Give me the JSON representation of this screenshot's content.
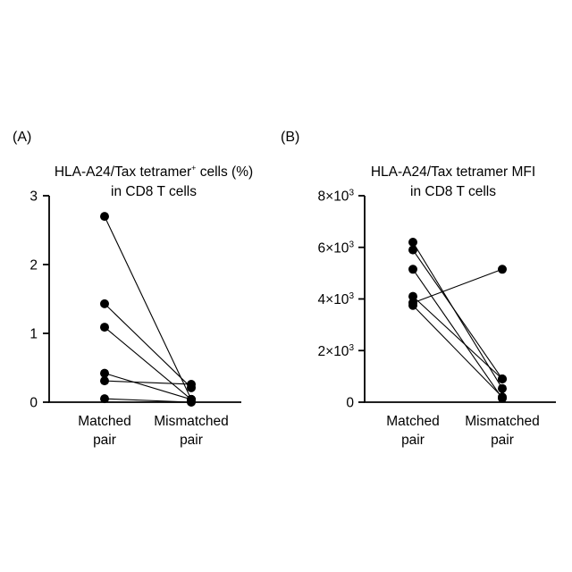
{
  "chart_data": [
    {
      "type": "scatter",
      "panel_label": "(A)",
      "title_line1_prefix": "HLA-A24/Tax tetramer",
      "title_line1_superscript": "+",
      "title_line1_suffix": " cells (%)",
      "title_line2": "in CD8 T cells",
      "categories": [
        "Matched pair",
        "Mismatched pair"
      ],
      "category_lines": [
        [
          "Matched",
          "pair"
        ],
        [
          "Mismatched",
          "pair"
        ]
      ],
      "ylim": [
        0,
        3
      ],
      "yticks": [
        {
          "value": 0,
          "label": "0"
        },
        {
          "value": 1,
          "label": "1"
        },
        {
          "value": 2,
          "label": "2"
        },
        {
          "value": 3,
          "label": "3"
        }
      ],
      "pairs": [
        {
          "matched": 2.7,
          "mismatched": 0.04
        },
        {
          "matched": 1.43,
          "mismatched": 0.21
        },
        {
          "matched": 1.09,
          "mismatched": 0.04
        },
        {
          "matched": 0.42,
          "mismatched": 0.04
        },
        {
          "matched": 0.31,
          "mismatched": 0.26
        },
        {
          "matched": 0.05,
          "mismatched": 0.0
        }
      ]
    },
    {
      "type": "scatter",
      "panel_label": "(B)",
      "title_line1": "HLA-A24/Tax tetramer MFI",
      "title_line2": "in CD8 T cells",
      "categories": [
        "Matched pair",
        "Mismatched pair"
      ],
      "category_lines": [
        [
          "Matched",
          "pair"
        ],
        [
          "Mismatched",
          "pair"
        ]
      ],
      "ylim": [
        0,
        8000
      ],
      "yticks": [
        {
          "value": 0,
          "label": "0",
          "mantissa": "",
          "exponent": ""
        },
        {
          "value": 2000,
          "label": "2×10",
          "mantissa": "2×10",
          "exponent": "3"
        },
        {
          "value": 4000,
          "label": "4×10",
          "mantissa": "4×10",
          "exponent": "3"
        },
        {
          "value": 6000,
          "label": "6×10",
          "mantissa": "6×10",
          "exponent": "3"
        },
        {
          "value": 8000,
          "label": "8×10",
          "mantissa": "8×10",
          "exponent": "3"
        }
      ],
      "pairs": [
        {
          "matched": 6200,
          "mismatched": 530
        },
        {
          "matched": 5900,
          "mismatched": 900
        },
        {
          "matched": 5150,
          "mismatched": 150
        },
        {
          "matched": 4100,
          "mismatched": 900
        },
        {
          "matched": 3850,
          "mismatched": 5150
        },
        {
          "matched": 3750,
          "mismatched": 200
        }
      ]
    }
  ]
}
